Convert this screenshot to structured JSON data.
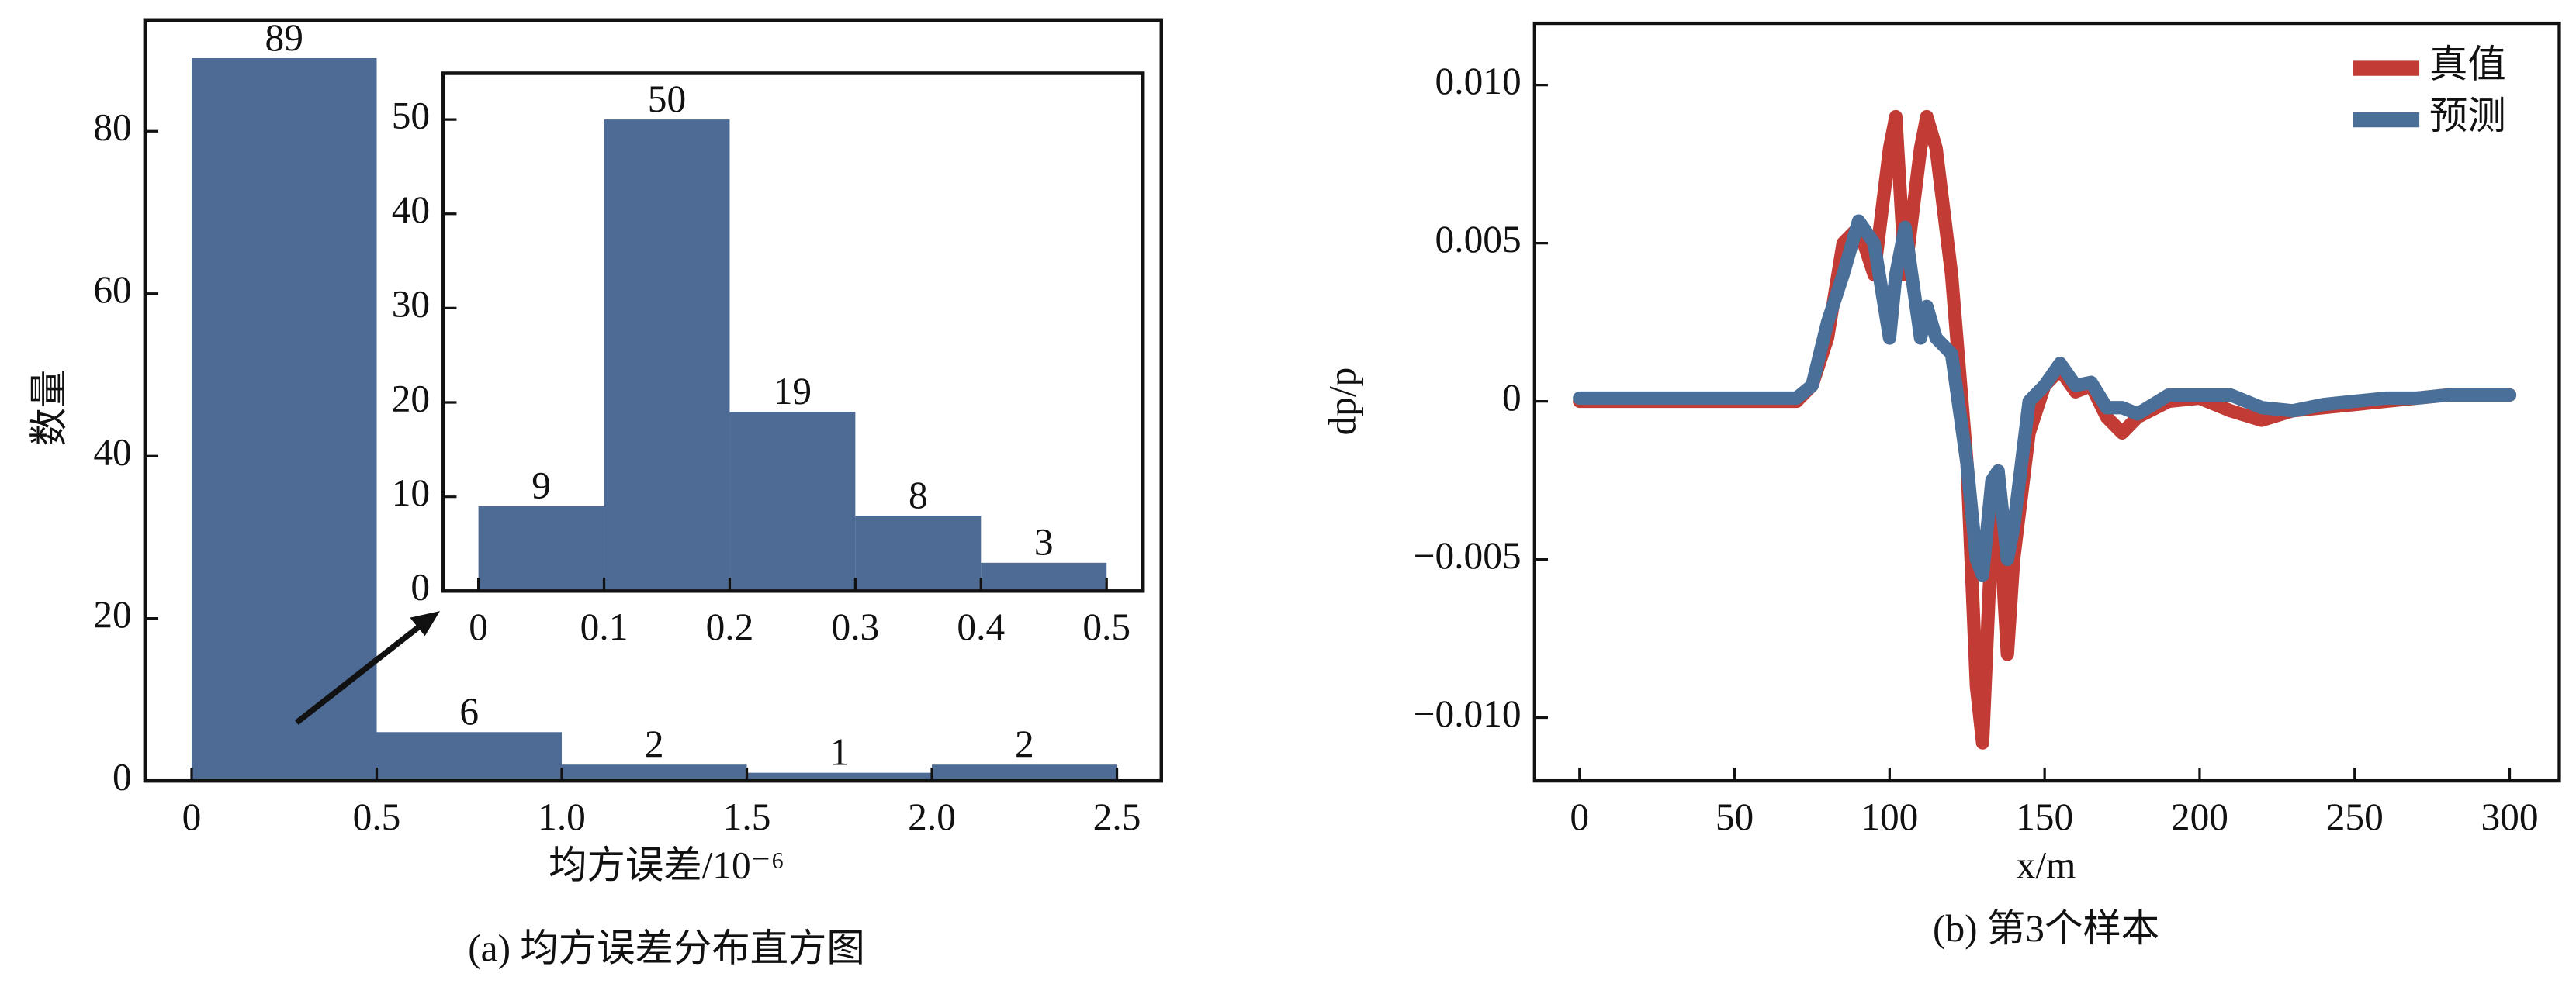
{
  "chart_data": [
    {
      "type": "histogram",
      "xlabel": "均方误差/10⁻⁶",
      "ylabel": "数量",
      "caption": "(a) 均方误差分布直方图",
      "bins": [
        0,
        0.5,
        1,
        1.5,
        2,
        2.5
      ],
      "counts": [
        89,
        6,
        2,
        1,
        2
      ],
      "color": "#4d6b94",
      "xlim": [
        -0.126,
        2.62
      ],
      "ylim": [
        0,
        93.7
      ],
      "xticks": [
        0,
        0.5,
        {
          "value": 1,
          "label": "1.0"
        },
        1.5,
        {
          "value": 2,
          "label": "2.0"
        },
        2.5
      ],
      "yticks": [
        0,
        20,
        40,
        60,
        80
      ]
    },
    {
      "type": "histogram",
      "bins": [
        0,
        0.1,
        0.2,
        0.3,
        0.4,
        0.5
      ],
      "counts": [
        9,
        50,
        19,
        8,
        3
      ],
      "color": "#4d6b94",
      "xlim": [
        -0.028,
        0.529
      ],
      "ylim": [
        0,
        54.9
      ],
      "xticks": [
        0,
        0.1,
        0.2,
        0.3,
        0.4,
        0.5
      ],
      "yticks": [
        0,
        10,
        20,
        30,
        40,
        50
      ]
    },
    {
      "type": "line",
      "xlabel": "x/m",
      "ylabel": "dp/p",
      "caption": "(b) 第3个样本",
      "legend": "upper right",
      "x": [
        0,
        10,
        20,
        30,
        40,
        50,
        60,
        70,
        75,
        80,
        85,
        90,
        95,
        100,
        102,
        105,
        110,
        112,
        115,
        120,
        125,
        128,
        130,
        133,
        135,
        138,
        140,
        145,
        150,
        155,
        160,
        165,
        170,
        175,
        180,
        190,
        200,
        210,
        220,
        230,
        240,
        250,
        260,
        270,
        280,
        290,
        300
      ],
      "series": [
        {
          "name": "真值",
          "color": "#c23b34",
          "values": [
            0,
            0,
            0,
            0,
            0,
            0,
            0,
            0,
            0.0005,
            0.002,
            0.005,
            0.0055,
            0.004,
            0.008,
            0.009,
            0.004,
            0.008,
            0.009,
            0.008,
            0.004,
            -0.002,
            -0.009,
            -0.0108,
            -0.004,
            -0.003,
            -0.008,
            -0.005,
            -0.001,
            0.0005,
            0.001,
            0.0003,
            0.0005,
            -0.0005,
            -0.001,
            -0.0005,
            0,
            0.0001,
            -0.0003,
            -0.0006,
            -0.0003,
            -0.0002,
            -0.0001,
            0,
            0.0001,
            0.0002,
            0.0002,
            0.0002
          ]
        },
        {
          "name": "预测",
          "color": "#4a6f99",
          "values": [
            0.0001,
            0.0001,
            0.0001,
            0.0001,
            0.0001,
            0.0001,
            0.0001,
            0.0001,
            0.0005,
            0.0025,
            0.004,
            0.0057,
            0.005,
            0.002,
            0.004,
            0.0055,
            0.002,
            0.003,
            0.002,
            0.0015,
            -0.002,
            -0.005,
            -0.0055,
            -0.0025,
            -0.0022,
            -0.005,
            -0.004,
            0,
            0.0005,
            0.0012,
            0.0005,
            0.0006,
            -0.0002,
            -0.0002,
            -0.0004,
            0.0002,
            0.0002,
            0.0002,
            -0.0002,
            -0.0003,
            -0.0001,
            0,
            0.0001,
            0.0001,
            0.0002,
            0.0002,
            0.0002
          ]
        }
      ],
      "xlim": [
        -14.5,
        316
      ],
      "ylim": [
        -0.012,
        0.01195
      ],
      "xticks": [
        0,
        50,
        100,
        150,
        200,
        250,
        300
      ],
      "yticks": [
        {
          "value": -0.01,
          "label": "−0.010"
        },
        {
          "value": -0.005,
          "label": "−0.005"
        },
        0,
        {
          "value": 0.005,
          "label": "0.005"
        },
        {
          "value": 0.01,
          "label": "0.010"
        }
      ]
    }
  ]
}
